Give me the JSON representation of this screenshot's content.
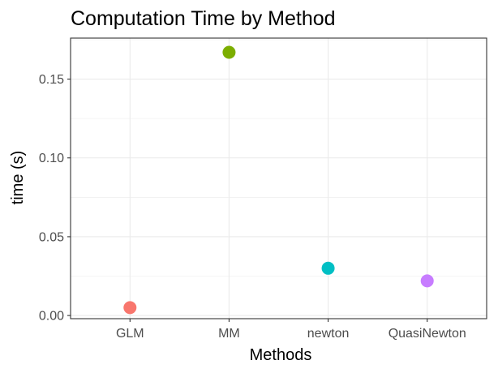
{
  "chart_data": {
    "type": "scatter",
    "title": "Computation Time by Method",
    "xlabel": "Methods",
    "ylabel": "time (s)",
    "categories": [
      "GLM",
      "MM",
      "newton",
      "QuasiNewton"
    ],
    "values": [
      0.005,
      0.167,
      0.03,
      0.022
    ],
    "point_colors": [
      "#F8766D",
      "#7CAE00",
      "#00BFC4",
      "#C77CFF"
    ],
    "ylim": [
      -0.002,
      0.176
    ],
    "yticks": [
      0.0,
      0.05,
      0.1,
      0.15
    ],
    "ytick_labels": [
      "0.00",
      "0.05",
      "0.10",
      "0.15"
    ],
    "grid": true,
    "legend": "none"
  }
}
